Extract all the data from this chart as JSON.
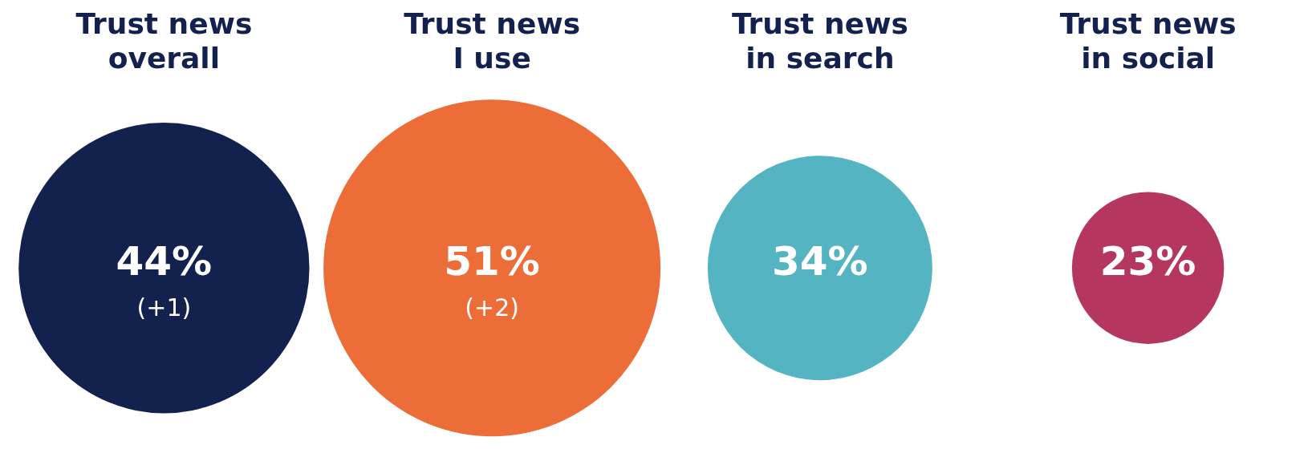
{
  "chart_data": {
    "type": "other",
    "categories": [
      "Trust news\noverall",
      "Trust news\nI use",
      "Trust news\nin search",
      "Trust news\nin social"
    ],
    "values": [
      44,
      51,
      34,
      23
    ],
    "colors": [
      "#13214f",
      "#ec6d38",
      "#55b4c1",
      "#b5365e"
    ],
    "value_labels": [
      "44%",
      "51%",
      "34%",
      "23%"
    ],
    "annotations": [
      {
        "text": "(+1)",
        "x": "Trust news\noverall"
      },
      {
        "text": "(+2)",
        "x": "Trust news\nI use"
      }
    ]
  }
}
